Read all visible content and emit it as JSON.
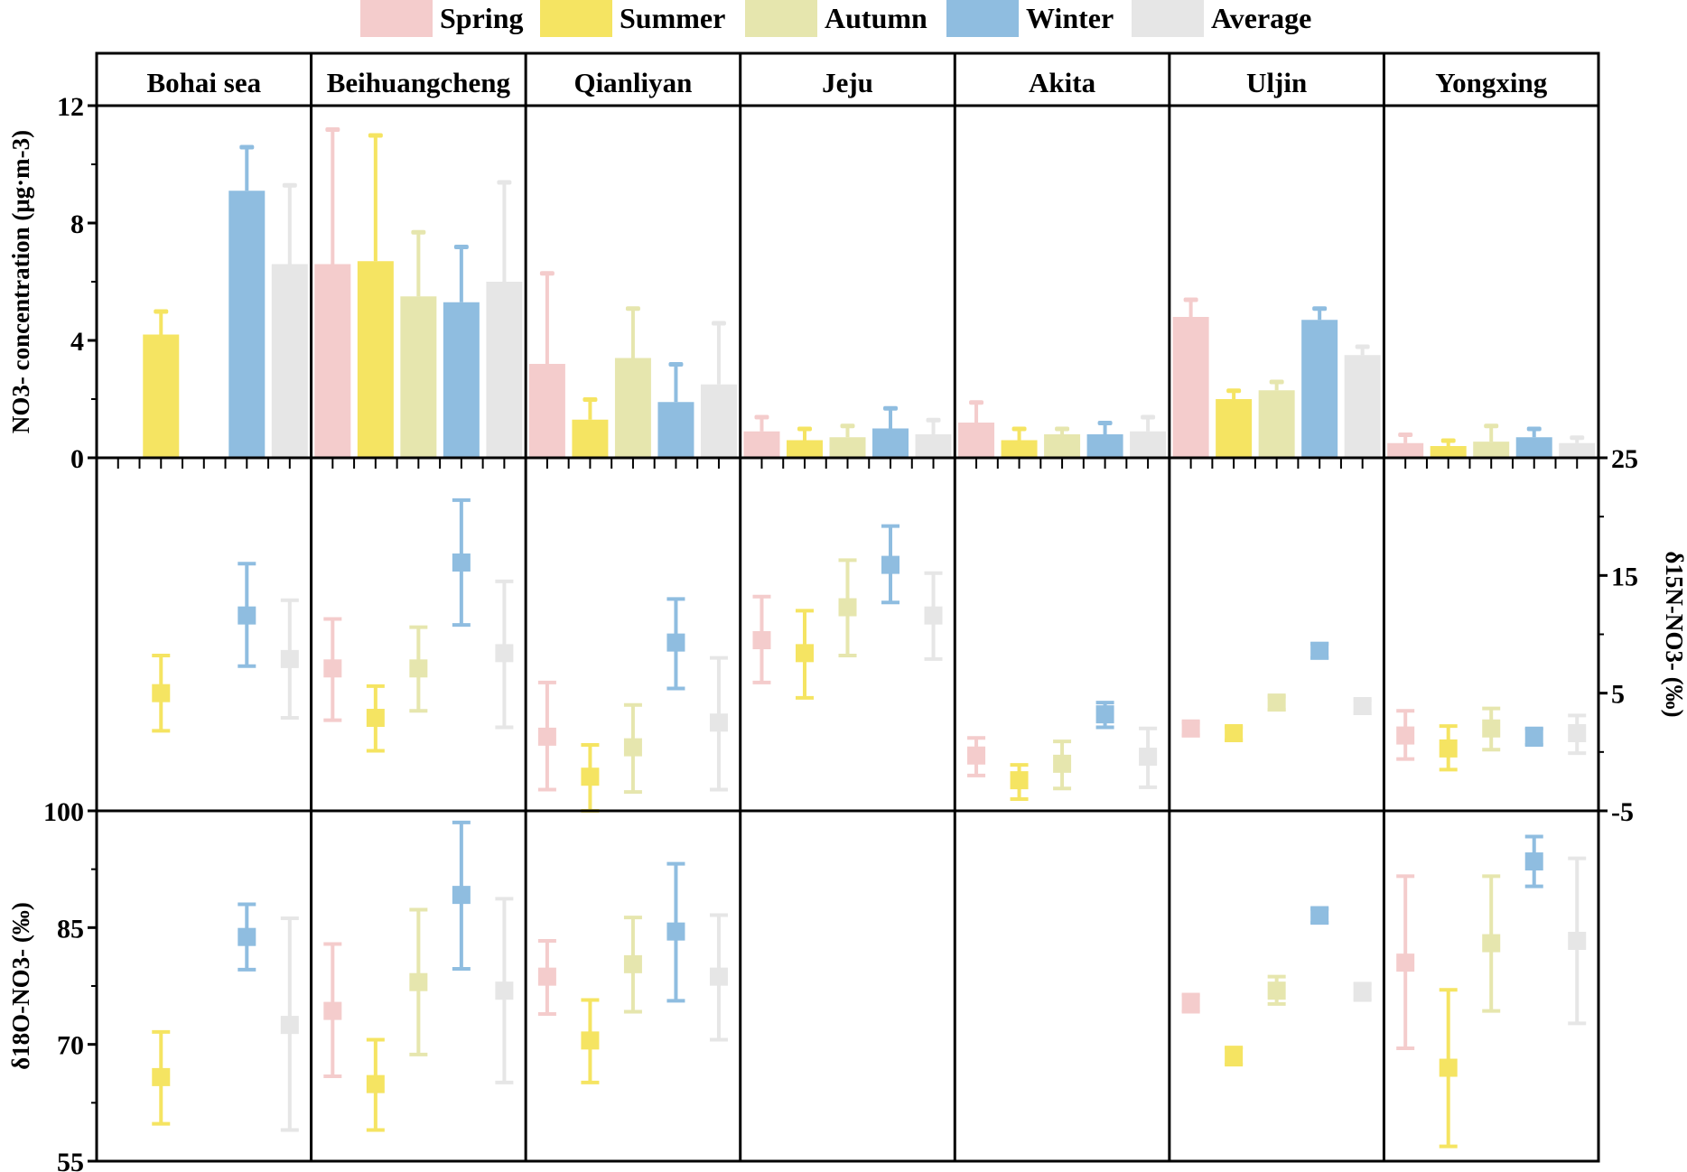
{
  "chart_data": {
    "type": "bar",
    "categories": [
      "Spring",
      "Summer",
      "Autumn",
      "Winter",
      "Average"
    ],
    "colors": [
      "#f4cccc",
      "#f5e462",
      "#e6e6ae",
      "#8fbde0",
      "#e6e6e6"
    ],
    "legend": {
      "position": "top",
      "entries": [
        "Spring",
        "Summer",
        "Autumn",
        "Winter",
        "Average"
      ]
    },
    "sites": [
      "Bohai sea",
      "Beihuangcheng",
      "Qianliyan",
      "Jeju",
      "Akita",
      "Uljin",
      "Yongxing"
    ],
    "panels": [
      {
        "name": "concentration",
        "type": "bar",
        "ylabel": "NO3- concentration (μg·m-3)",
        "ylabel_parts": {
          "base": "NO",
          "sub": "3",
          "sup1": "-",
          "mid": " concentration (μg·m",
          "sup2": "-3",
          "end": ")"
        },
        "ylim": [
          0,
          12
        ],
        "ticks": [
          "0",
          "4",
          "8",
          "12"
        ],
        "tick_values": [
          0,
          4,
          8,
          12
        ],
        "axis_side": "left",
        "note": "values: [mean, mean+sd] per season; null = no data",
        "values": [
          [
            null,
            [
              4.2,
              5.0
            ],
            null,
            [
              9.1,
              10.6
            ],
            [
              6.6,
              9.3
            ]
          ],
          [
            [
              6.6,
              11.2
            ],
            [
              6.7,
              11.0
            ],
            [
              5.5,
              7.7
            ],
            [
              5.3,
              7.2
            ],
            [
              6.0,
              9.4
            ]
          ],
          [
            [
              3.2,
              6.3
            ],
            [
              1.3,
              2.0
            ],
            [
              3.4,
              5.1
            ],
            [
              1.9,
              3.2
            ],
            [
              2.5,
              4.6
            ]
          ],
          [
            [
              0.9,
              1.4
            ],
            [
              0.6,
              1.0
            ],
            [
              0.7,
              1.1
            ],
            [
              1.0,
              1.7
            ],
            [
              0.8,
              1.3
            ]
          ],
          [
            [
              1.2,
              1.9
            ],
            [
              0.6,
              1.0
            ],
            [
              0.8,
              1.0
            ],
            [
              0.8,
              1.2
            ],
            [
              0.9,
              1.4
            ]
          ],
          [
            [
              4.8,
              5.4
            ],
            [
              2.0,
              2.3
            ],
            [
              2.3,
              2.6
            ],
            [
              4.7,
              5.1
            ],
            [
              3.5,
              3.8
            ]
          ],
          [
            [
              0.5,
              0.8
            ],
            [
              0.4,
              0.6
            ],
            [
              0.55,
              1.1
            ],
            [
              0.7,
              1.0
            ],
            [
              0.5,
              0.7
            ]
          ]
        ]
      },
      {
        "name": "d15N",
        "type": "scatter",
        "ylabel": "δ15N-NO3- (‰)",
        "ylabel_parts": {
          "base": "δ",
          "sup1": "15",
          "mid": "N-NO",
          "sub": "3",
          "sup2": "-",
          "end": " (‰)"
        },
        "ylim": [
          -5,
          25
        ],
        "ticks": [
          "-5",
          "5",
          "15",
          "25"
        ],
        "tick_values": [
          -5,
          5,
          15,
          25
        ],
        "axis_side": "right",
        "note": "values: [mean, upper, lower]",
        "values": [
          [
            null,
            [
              5.0,
              8.2,
              1.8
            ],
            null,
            [
              11.6,
              16.0,
              7.3
            ],
            [
              7.9,
              12.9,
              2.9
            ]
          ],
          [
            [
              7.1,
              11.3,
              2.7
            ],
            [
              2.9,
              5.6,
              0.1
            ],
            [
              7.1,
              10.6,
              3.5
            ],
            [
              16.1,
              21.4,
              10.8
            ],
            [
              8.4,
              14.5,
              2.1
            ]
          ],
          [
            [
              1.3,
              5.9,
              -3.2
            ],
            [
              -2.1,
              0.6,
              -5.0
            ],
            [
              0.4,
              4.0,
              -3.4
            ],
            [
              9.3,
              13.0,
              5.4
            ],
            [
              2.5,
              8.0,
              -3.2
            ]
          ],
          [
            [
              9.5,
              13.2,
              5.9
            ],
            [
              8.4,
              12.0,
              4.6
            ],
            [
              12.3,
              16.3,
              8.2
            ],
            [
              15.9,
              19.2,
              12.7
            ],
            [
              11.6,
              15.2,
              7.9
            ]
          ],
          [
            [
              -0.3,
              1.2,
              -2.0
            ],
            [
              -2.4,
              -1.1,
              -4.0
            ],
            [
              -1.0,
              0.9,
              -3.1
            ],
            [
              3.2,
              4.2,
              2.1
            ],
            [
              -0.4,
              2.0,
              -3.0
            ]
          ],
          [
            [
              2.0,
              2.5,
              1.4
            ],
            [
              1.6,
              2.1,
              1.0
            ],
            [
              4.2,
              4.7,
              3.6
            ],
            [
              8.6,
              9.2,
              8.0
            ],
            [
              3.9,
              4.4,
              3.3
            ]
          ],
          [
            [
              1.4,
              3.5,
              -0.6
            ],
            [
              0.3,
              2.2,
              -1.5
            ],
            [
              2.0,
              3.7,
              0.2
            ],
            [
              1.3,
              2.0,
              0.6
            ],
            [
              1.6,
              3.1,
              -0.1
            ]
          ]
        ]
      },
      {
        "name": "d18O",
        "type": "scatter",
        "ylabel": "δ18O-NO3- (‰)",
        "ylabel_parts": {
          "base": "δ",
          "sup1": "18",
          "mid": "O-NO",
          "sub": "3",
          "sup2": "-",
          "end": " (‰)"
        },
        "ylim": [
          55,
          100
        ],
        "ticks": [
          "55",
          "70",
          "85",
          "100"
        ],
        "tick_values": [
          55,
          70,
          85,
          100
        ],
        "axis_side": "left",
        "note": "values: [mean, upper, lower]",
        "values": [
          [
            null,
            [
              65.8,
              71.6,
              59.8
            ],
            null,
            [
              83.8,
              88.0,
              79.6
            ],
            [
              72.5,
              86.2,
              59.0
            ]
          ],
          [
            [
              74.3,
              82.9,
              65.9
            ],
            [
              64.9,
              70.6,
              59.0
            ],
            [
              78.0,
              87.3,
              68.7
            ],
            [
              89.2,
              98.5,
              79.7
            ],
            [
              76.9,
              88.7,
              65.1
            ]
          ],
          [
            [
              78.7,
              83.3,
              73.9
            ],
            [
              70.5,
              75.7,
              65.1
            ],
            [
              80.3,
              86.3,
              74.2
            ],
            [
              84.5,
              93.2,
              75.6
            ],
            [
              78.7,
              86.6,
              70.6
            ]
          ],
          [
            null,
            null,
            null,
            null,
            null
          ],
          [
            null,
            null,
            null,
            null,
            null
          ],
          [
            [
              75.3,
              76.4,
              74.2
            ],
            [
              68.5,
              69.6,
              67.4
            ],
            [
              76.9,
              78.7,
              75.2
            ],
            [
              86.6,
              87.4,
              85.6
            ],
            [
              76.8,
              77.8,
              75.7
            ]
          ],
          [
            [
              80.5,
              91.6,
              69.5
            ],
            [
              67.0,
              77.0,
              56.9
            ],
            [
              83.0,
              91.6,
              74.3
            ],
            [
              93.5,
              96.7,
              90.3
            ],
            [
              83.3,
              93.9,
              72.7
            ]
          ]
        ]
      }
    ]
  }
}
